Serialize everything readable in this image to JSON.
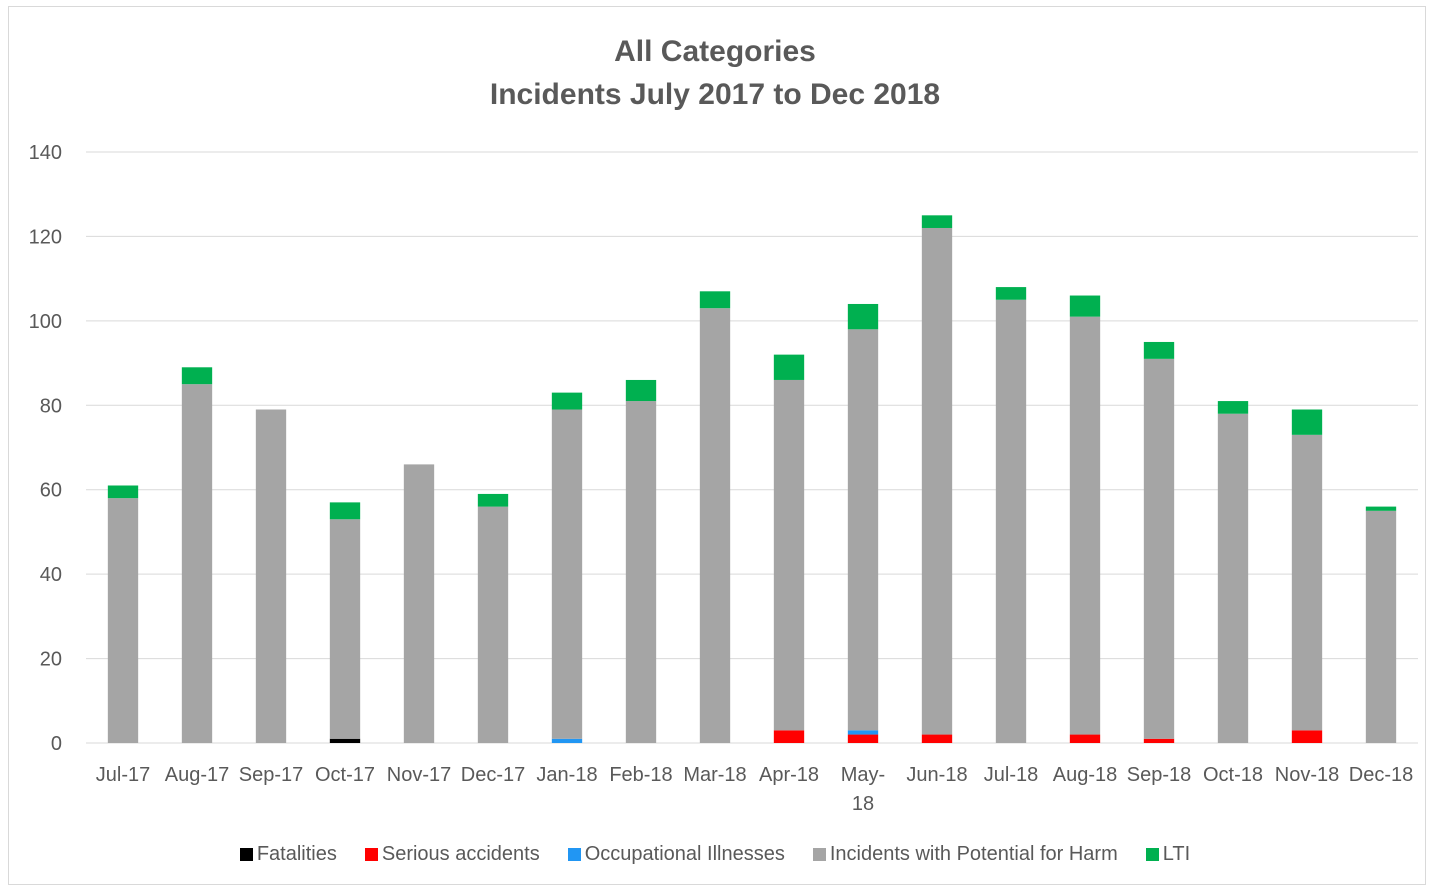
{
  "chart_data": {
    "type": "bar",
    "stacked": true,
    "title": "All Categories",
    "subtitle": "Incidents July 2017 to Dec 2018",
    "xlabel": "",
    "ylabel": "",
    "ylim": [
      0,
      140
    ],
    "yticks": [
      "0",
      "20",
      "40",
      "60",
      "80",
      "100",
      "120",
      "140"
    ],
    "grid": true,
    "legend_position": "bottom",
    "categories": [
      "Jul-17",
      "Aug-17",
      "Sep-17",
      "Oct-17",
      "Nov-17",
      "Dec-17",
      "Jan-18",
      "Feb-18",
      "Mar-18",
      "Apr-18",
      "May-18",
      "Jun-18",
      "Jul-18",
      "Aug-18",
      "Sep-18",
      "Oct-18",
      "Nov-18",
      "Dec-18"
    ],
    "series": [
      {
        "name": "Fatalities",
        "color": "#000000",
        "values": [
          0,
          0,
          0,
          1,
          0,
          0,
          0,
          0,
          0,
          0,
          0,
          0,
          0,
          0,
          0,
          0,
          0,
          0
        ]
      },
      {
        "name": "Serious accidents",
        "color": "#ff0000",
        "values": [
          0,
          0,
          0,
          0,
          0,
          0,
          0,
          0,
          0,
          3,
          2,
          2,
          0,
          2,
          1,
          0,
          3,
          0
        ]
      },
      {
        "name": "Occupational Illnesses",
        "color": "#2196f3",
        "values": [
          0,
          0,
          0,
          0,
          0,
          0,
          1,
          0,
          0,
          0,
          1,
          0,
          0,
          0,
          0,
          0,
          0,
          0
        ]
      },
      {
        "name": "Incidents with Potential for Harm",
        "color": "#a5a5a5",
        "values": [
          58,
          85,
          79,
          52,
          66,
          56,
          78,
          81,
          103,
          83,
          95,
          120,
          105,
          99,
          90,
          78,
          70,
          55
        ]
      },
      {
        "name": "LTI",
        "color": "#00b050",
        "values": [
          3,
          4,
          0,
          4,
          0,
          3,
          4,
          5,
          4,
          6,
          6,
          3,
          3,
          5,
          4,
          3,
          6,
          1
        ]
      }
    ]
  }
}
